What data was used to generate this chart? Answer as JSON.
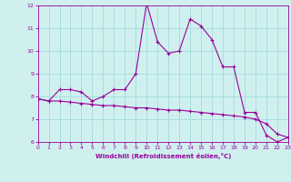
{
  "x": [
    0,
    1,
    2,
    3,
    4,
    5,
    6,
    7,
    8,
    9,
    10,
    11,
    12,
    13,
    14,
    15,
    16,
    17,
    18,
    19,
    20,
    21,
    22,
    23
  ],
  "y_windchill": [
    7.9,
    7.8,
    8.3,
    8.3,
    8.2,
    7.8,
    8.0,
    8.3,
    8.3,
    9.0,
    12.1,
    10.4,
    9.9,
    10.0,
    11.4,
    11.1,
    10.5,
    9.3,
    9.3,
    7.3,
    7.3,
    6.3,
    6.0,
    6.2
  ],
  "y_trend": [
    7.9,
    7.8,
    7.8,
    7.75,
    7.7,
    7.65,
    7.6,
    7.6,
    7.55,
    7.5,
    7.5,
    7.45,
    7.4,
    7.4,
    7.35,
    7.3,
    7.25,
    7.2,
    7.15,
    7.1,
    7.0,
    6.8,
    6.35,
    6.2
  ],
  "line_color": "#990099",
  "bg_color": "#d0f0f0",
  "grid_color": "#aadddd",
  "xlabel": "Windchill (Refroidissement éolien,°C)",
  "xlim": [
    0,
    23
  ],
  "ylim": [
    6,
    12
  ],
  "yticks": [
    6,
    7,
    8,
    9,
    10,
    11,
    12
  ],
  "xticks": [
    0,
    1,
    2,
    3,
    4,
    5,
    6,
    7,
    8,
    9,
    10,
    11,
    12,
    13,
    14,
    15,
    16,
    17,
    18,
    19,
    20,
    21,
    22,
    23
  ]
}
